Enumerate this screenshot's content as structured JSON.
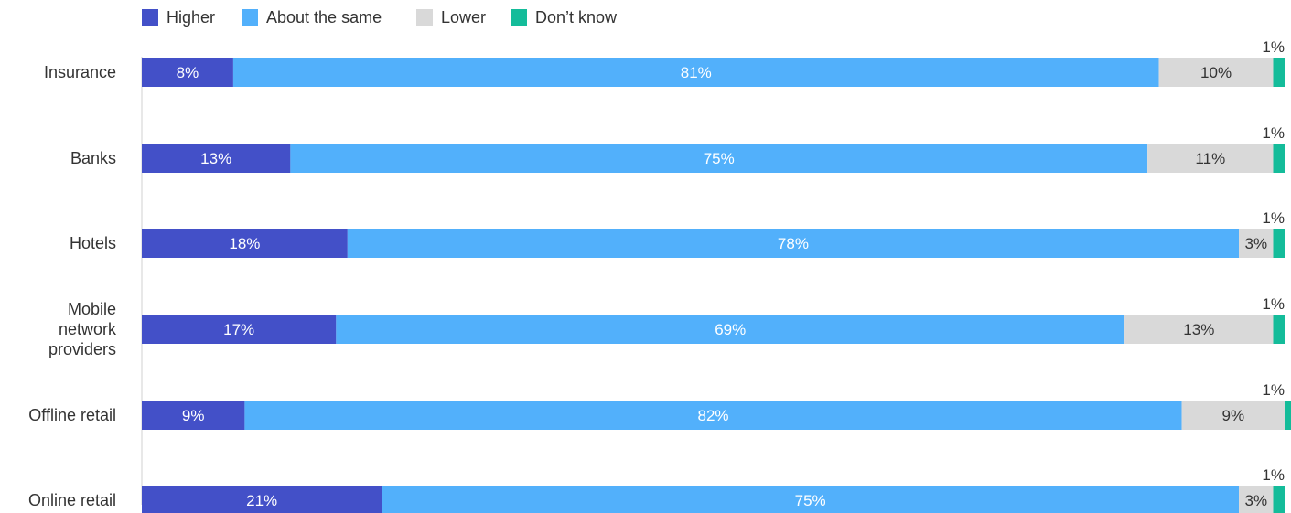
{
  "chart_data": {
    "type": "bar",
    "orientation": "horizontal",
    "stacked": true,
    "legend_position": "top-left",
    "categories": [
      [
        "Insurance"
      ],
      [
        "Banks"
      ],
      [
        "Hotels"
      ],
      [
        "Mobile",
        "network",
        "providers"
      ],
      [
        "Offline retail"
      ],
      [
        "Online retail"
      ]
    ],
    "series": [
      {
        "name": "Higher",
        "color": "#4350c8",
        "label_color": "#ffffff",
        "values": [
          8,
          13,
          18,
          17,
          9,
          21
        ]
      },
      {
        "name": "About the same",
        "color": "#52b0fb",
        "label_color": "#ffffff",
        "values": [
          81,
          75,
          78,
          69,
          82,
          75
        ]
      },
      {
        "name": "Lower",
        "color": "#d9d9d9",
        "label_color": "#333333",
        "values": [
          10,
          11,
          3,
          13,
          9,
          3
        ]
      },
      {
        "name": "Don’t know",
        "color": "#14bc9a",
        "label_color": "#333333",
        "values": [
          1,
          1,
          1,
          1,
          1,
          1
        ]
      }
    ],
    "value_suffix": "%",
    "xlim": [
      0,
      100
    ]
  }
}
